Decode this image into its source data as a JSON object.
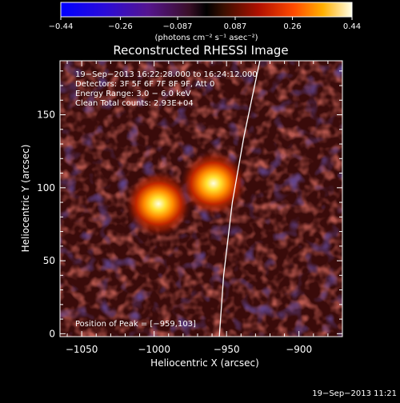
{
  "chart_data": {
    "type": "heatmap",
    "title": "Reconstructed RHESSI Image",
    "xlabel": "Heliocentric X (arcsec)",
    "ylabel": "Heliocentric Y (arcsec)",
    "xlim": [
      -1065,
      -870
    ],
    "ylim": [
      -2,
      187
    ],
    "x_ticks": [
      {
        "value": -1050,
        "label": "−1050"
      },
      {
        "value": -1000,
        "label": "−1000"
      },
      {
        "value": -950,
        "label": "−950"
      },
      {
        "value": -900,
        "label": "−900"
      }
    ],
    "y_ticks": [
      {
        "value": 0,
        "label": "0"
      },
      {
        "value": 50,
        "label": "50"
      },
      {
        "value": 100,
        "label": "100"
      },
      {
        "value": 150,
        "label": "150"
      }
    ],
    "colorbar": {
      "range": [
        -0.44,
        0.44
      ],
      "tick_labels": [
        "−0.44",
        "−0.26",
        "−0.087",
        "0.087",
        "0.26",
        "0.44"
      ],
      "tick_values": [
        -0.44,
        -0.26,
        -0.087,
        0.087,
        0.26,
        0.44
      ],
      "units": "(photons cm⁻² s⁻¹ asec⁻²)"
    },
    "info_lines": [
      "19−Sep−2013 16:22:28.000 to 16:24:12.000",
      "Detectors: 3F 5F 6F 7F 8F 9F, Att 0",
      "Energy Range: 3.0 − 6.0 keV",
      "Clean     Total counts: 2.93E+04"
    ],
    "peak_label": "Position of Peak = [−959,103]",
    "sources": [
      {
        "name": "source-1",
        "x": -997,
        "y": 89,
        "intensity": 0.44
      },
      {
        "name": "source-2",
        "x": -959,
        "y": 103,
        "intensity": 0.44
      }
    ],
    "limb_line": [
      {
        "x": -955,
        "y": -2
      },
      {
        "x": -952,
        "y": 40
      },
      {
        "x": -946,
        "y": 90
      },
      {
        "x": -938,
        "y": 135
      },
      {
        "x": -927,
        "y": 187
      }
    ]
  },
  "footer": {
    "timestamp": "19−Sep−2013 11:21"
  }
}
